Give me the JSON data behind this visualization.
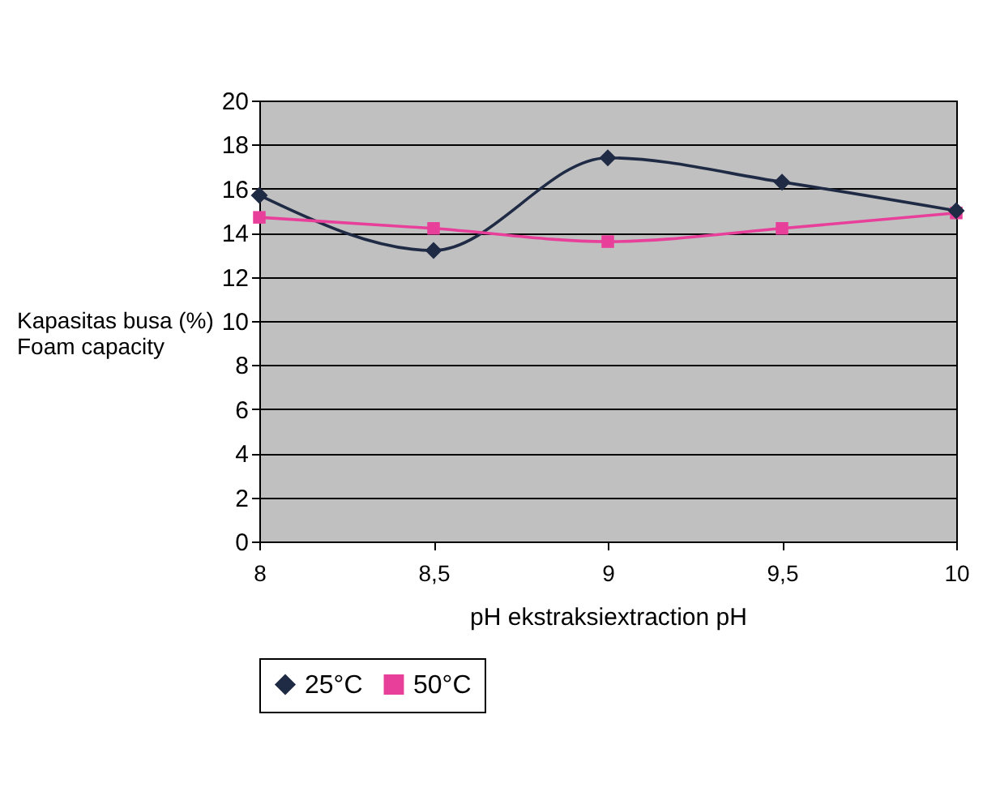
{
  "chart_data": {
    "type": "line",
    "xlabel": "pH ekstraksiextraction pH",
    "ylabel": "Kapasitas busa (%)\nFoam capacity",
    "categories": [
      "8",
      "8,5",
      "9",
      "9,5",
      "10"
    ],
    "series": [
      {
        "name": "25°C",
        "color": "#1f2a44",
        "marker": "diamond",
        "values": [
          15.7,
          13.2,
          17.4,
          16.3,
          15.0
        ]
      },
      {
        "name": "50°C",
        "color": "#e8409a",
        "marker": "square",
        "values": [
          14.7,
          14.2,
          13.6,
          14.2,
          14.9
        ]
      }
    ],
    "ylim": [
      0,
      20
    ],
    "yticks": [
      0,
      2,
      4,
      6,
      8,
      10,
      12,
      14,
      16,
      18,
      20
    ],
    "grid": "y",
    "legend": "bottom"
  }
}
